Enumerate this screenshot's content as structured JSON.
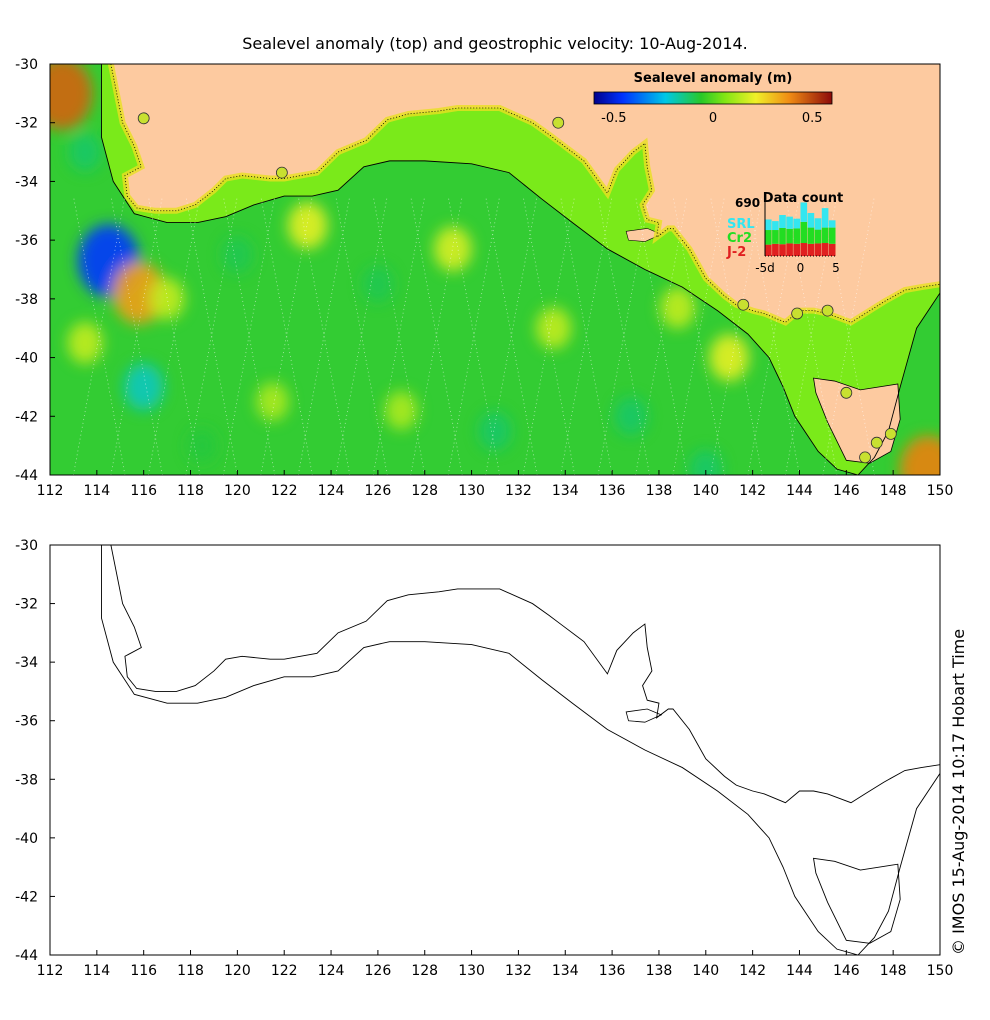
{
  "title": "Sealevel anomaly (top) and geostrophic velocity: 10-Aug-2014.",
  "timestamp": "© IMOS 15-Aug-2014 10:17 Hobart Time",
  "colors": {
    "land": "#fdcaa0",
    "ocean_green": "#33cc33",
    "shelf_green": "#7aea1a",
    "srl": "#33e6f0",
    "cr2": "#22dd22",
    "j2": "#e02020",
    "station": "#c8e030"
  },
  "colorbar": {
    "label": "Sealevel anomaly (m)",
    "ticks": [
      "-0.5",
      "0",
      "0.5"
    ],
    "tick_values": [
      -0.5,
      0,
      0.5
    ],
    "range": [
      -0.6,
      0.6
    ]
  },
  "data_count": {
    "title": "Data count",
    "max_label": "690",
    "series_labels": [
      "SRL",
      "Cr2",
      "J-2"
    ],
    "x_ticks": [
      "-5d",
      "0",
      "5"
    ],
    "x_tick_values": [
      -5,
      0,
      5
    ],
    "days": [
      -5,
      -4,
      -3,
      -2,
      -1,
      0,
      1,
      2,
      3,
      4
    ],
    "j2": [
      140,
      150,
      145,
      155,
      150,
      160,
      150,
      155,
      160,
      150
    ],
    "cr2": [
      180,
      170,
      200,
      180,
      190,
      260,
      200,
      170,
      190,
      200
    ],
    "srl": [
      130,
      110,
      160,
      150,
      120,
      240,
      180,
      140,
      240,
      90
    ]
  },
  "chart_data": [
    {
      "type": "heatmap",
      "title": "Sealevel anomaly (top) and geostrophic velocity: 10-Aug-2014.",
      "xlabel": "",
      "ylabel": "",
      "x_range": [
        112,
        150
      ],
      "y_range": [
        -44,
        -30
      ],
      "x_ticks": [
        "112",
        "114",
        "116",
        "118",
        "120",
        "122",
        "124",
        "126",
        "128",
        "130",
        "132",
        "134",
        "136",
        "138",
        "140",
        "142",
        "144",
        "146",
        "148",
        "150"
      ],
      "y_ticks": [
        "-30",
        "-32",
        "-34",
        "-36",
        "-38",
        "-40",
        "-42",
        "-44"
      ],
      "colorbar_label": "Sealevel anomaly (m)",
      "colorbar_range": [
        -0.6,
        0.6
      ],
      "anomaly_spots": [
        {
          "lon": 112.5,
          "lat": -31.0,
          "value": 0.45
        },
        {
          "lon": 114.5,
          "lat": -36.7,
          "value": -0.45
        },
        {
          "lon": 115.8,
          "lat": -37.8,
          "value": 0.35
        },
        {
          "lon": 149.5,
          "lat": -43.8,
          "value": 0.4
        },
        {
          "lon": 113.5,
          "lat": -39.5,
          "value": 0.15
        },
        {
          "lon": 117.0,
          "lat": -38.0,
          "value": 0.15
        },
        {
          "lon": 123.0,
          "lat": -35.5,
          "value": 0.2
        },
        {
          "lon": 129.2,
          "lat": -36.3,
          "value": 0.18
        },
        {
          "lon": 133.5,
          "lat": -39.0,
          "value": 0.15
        },
        {
          "lon": 138.8,
          "lat": -38.3,
          "value": 0.15
        },
        {
          "lon": 141.0,
          "lat": -40.0,
          "value": 0.2
        },
        {
          "lon": 121.5,
          "lat": -41.5,
          "value": 0.12
        },
        {
          "lon": 127.0,
          "lat": -41.8,
          "value": 0.12
        },
        {
          "lon": 145.0,
          "lat": -41.0,
          "value": 0.1
        },
        {
          "lon": 116.0,
          "lat": -41.0,
          "value": -0.2
        },
        {
          "lon": 113.5,
          "lat": -33.0,
          "value": -0.12
        },
        {
          "lon": 120.0,
          "lat": -36.5,
          "value": -0.1
        },
        {
          "lon": 126.0,
          "lat": -37.5,
          "value": -0.1
        },
        {
          "lon": 131.0,
          "lat": -42.5,
          "value": -0.12
        },
        {
          "lon": 136.8,
          "lat": -42.0,
          "value": -0.12
        },
        {
          "lon": 140.0,
          "lat": -43.8,
          "value": -0.12
        },
        {
          "lon": 118.5,
          "lat": -43.0,
          "value": -0.08
        }
      ],
      "stations": [
        {
          "lon": 116.0,
          "lat": -31.85
        },
        {
          "lon": 121.9,
          "lat": -33.7
        },
        {
          "lon": 133.7,
          "lat": -32.0
        },
        {
          "lon": 141.6,
          "lat": -38.2
        },
        {
          "lon": 143.9,
          "lat": -38.5
        },
        {
          "lon": 145.2,
          "lat": -38.4
        },
        {
          "lon": 146.0,
          "lat": -41.2
        },
        {
          "lon": 147.3,
          "lat": -42.9
        },
        {
          "lon": 147.9,
          "lat": -42.6
        },
        {
          "lon": 146.8,
          "lat": -43.4
        }
      ]
    },
    {
      "type": "line",
      "title": "",
      "xlabel": "",
      "ylabel": "",
      "x_range": [
        112,
        150
      ],
      "y_range": [
        -44,
        -30
      ],
      "x_ticks": [
        "112",
        "114",
        "116",
        "118",
        "120",
        "122",
        "124",
        "126",
        "128",
        "130",
        "132",
        "134",
        "136",
        "138",
        "140",
        "142",
        "144",
        "146",
        "148",
        "150"
      ],
      "y_ticks": [
        "-30",
        "-32",
        "-34",
        "-36",
        "-38",
        "-40",
        "-42",
        "-44"
      ],
      "series": [
        {
          "name": "Coastline",
          "x": [
            114.6,
            114.9,
            115.1,
            115.6,
            115.9,
            115.2,
            115.3,
            115.7,
            116.5,
            117.4,
            118.2,
            119.0,
            119.5,
            120.2,
            121.4,
            122.0,
            123.4,
            124.3,
            125.5,
            126.4,
            127.3,
            128.6,
            129.4,
            130.7,
            131.2,
            132.6,
            133.3,
            133.8,
            134.8,
            135.8,
            136.2,
            136.9,
            137.4,
            137.5,
            137.7,
            137.3,
            137.5,
            138.0,
            137.9,
            138.4,
            138.6,
            139.3,
            140.0,
            140.8,
            141.3,
            142.0,
            142.5,
            143.4,
            144.0,
            144.6,
            145.2,
            146.2,
            146.8,
            147.6,
            148.5,
            149.2,
            150.0
          ],
          "y": [
            -30.0,
            -31.2,
            -32.0,
            -32.8,
            -33.5,
            -33.8,
            -34.5,
            -34.9,
            -35.0,
            -35.0,
            -34.8,
            -34.3,
            -33.9,
            -33.8,
            -33.9,
            -33.9,
            -33.7,
            -33.0,
            -32.6,
            -31.9,
            -31.7,
            -31.6,
            -31.5,
            -31.5,
            -31.5,
            -32.0,
            -32.4,
            -32.7,
            -33.3,
            -34.4,
            -33.6,
            -33.0,
            -32.7,
            -33.5,
            -34.3,
            -34.8,
            -35.3,
            -35.4,
            -35.9,
            -35.6,
            -35.6,
            -36.3,
            -37.3,
            -37.9,
            -38.2,
            -38.4,
            -38.5,
            -38.8,
            -38.4,
            -38.4,
            -38.5,
            -38.8,
            -38.5,
            -38.1,
            -37.7,
            -37.6,
            -37.5
          ]
        },
        {
          "name": "Shelf edge (200 m isobath)",
          "x": [
            114.2,
            114.2,
            114.7,
            115.6,
            117.0,
            118.3,
            119.5,
            120.7,
            122.0,
            123.2,
            124.3,
            125.4,
            126.5,
            128.0,
            130.0,
            131.6,
            133.0,
            134.3,
            135.8,
            137.4,
            139.0,
            140.5,
            141.8,
            142.7,
            143.3,
            143.8,
            144.8,
            145.6,
            146.5,
            147.2,
            147.8,
            148.3,
            149.0,
            150.0
          ],
          "y": [
            -30.0,
            -32.5,
            -34.0,
            -35.1,
            -35.4,
            -35.4,
            -35.2,
            -34.8,
            -34.5,
            -34.5,
            -34.3,
            -33.5,
            -33.3,
            -33.3,
            -33.4,
            -33.7,
            -34.6,
            -35.4,
            -36.3,
            -37.0,
            -37.6,
            -38.4,
            -39.2,
            -40.0,
            -41.0,
            -42.0,
            -43.2,
            -43.8,
            -44.0,
            -43.4,
            -42.5,
            -41.0,
            -39.0,
            -37.8
          ]
        }
      ]
    }
  ]
}
